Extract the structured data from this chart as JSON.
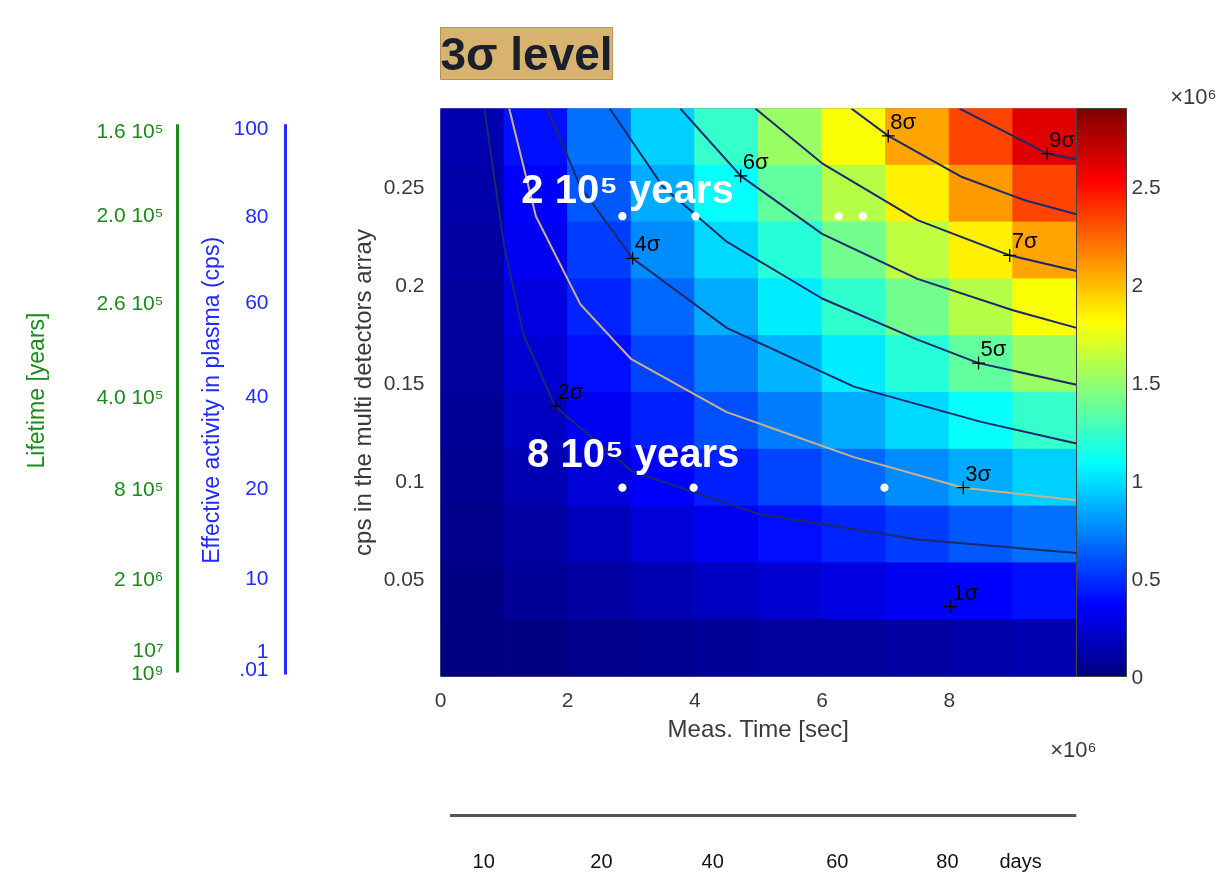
{
  "chart_data": {
    "type": "heatmap",
    "xlabel": "Meas. Time [sec]",
    "ylabel": "cps in the multi detectors array",
    "xlim": [
      0,
      10
    ],
    "xticks": [
      0,
      2,
      4,
      6,
      8
    ],
    "ylim": [
      0,
      0.29
    ],
    "yticks": [
      0.05,
      0.1,
      0.15,
      0.2,
      0.25
    ],
    "clim": [
      0,
      2.9
    ],
    "cticks": [
      0,
      0.5,
      1,
      1.5,
      2,
      2.5
    ],
    "x": [
      0.5,
      1.5,
      2.5,
      3.5,
      4.5,
      5.5,
      6.5,
      7.5,
      8.5,
      9.5
    ],
    "y": [
      0.2755,
      0.2465,
      0.2175,
      0.1885,
      0.1595,
      0.1305,
      0.1015,
      0.0725,
      0.0435,
      0.0145
    ],
    "cells": [
      [
        0.14,
        0.41,
        0.69,
        0.96,
        1.24,
        1.52,
        1.79,
        2.07,
        2.34,
        2.62
      ],
      [
        0.12,
        0.37,
        0.62,
        0.86,
        1.11,
        1.36,
        1.6,
        1.85,
        2.1,
        2.34
      ],
      [
        0.11,
        0.33,
        0.54,
        0.76,
        0.98,
        1.2,
        1.41,
        1.63,
        1.85,
        2.07
      ],
      [
        0.09,
        0.28,
        0.47,
        0.66,
        0.85,
        1.04,
        1.23,
        1.41,
        1.6,
        1.79
      ],
      [
        0.08,
        0.24,
        0.4,
        0.56,
        0.72,
        0.88,
        1.04,
        1.2,
        1.36,
        1.52
      ],
      [
        0.07,
        0.2,
        0.33,
        0.46,
        0.59,
        0.72,
        0.85,
        0.98,
        1.11,
        1.24
      ],
      [
        0.05,
        0.15,
        0.25,
        0.36,
        0.46,
        0.56,
        0.66,
        0.76,
        0.86,
        0.96
      ],
      [
        0.04,
        0.11,
        0.18,
        0.25,
        0.33,
        0.4,
        0.47,
        0.54,
        0.62,
        0.69
      ],
      [
        0.02,
        0.07,
        0.11,
        0.15,
        0.2,
        0.24,
        0.28,
        0.33,
        0.37,
        0.41
      ],
      [
        0.01,
        0.02,
        0.04,
        0.05,
        0.07,
        0.08,
        0.09,
        0.11,
        0.12,
        0.14
      ]
    ],
    "series": [
      {
        "type": "line",
        "color": "#1c2a6b",
        "x": [
          0.69,
          1.0,
          1.3,
          1.8,
          3,
          5,
          7.5,
          10
        ],
        "values": [
          0.29,
          0.22,
          0.175,
          0.138,
          0.105,
          0.083,
          0.07,
          0.063
        ]
      },
      {
        "type": "line",
        "color": "#1c2a6b",
        "x": [
          1.68,
          2.2,
          3.02,
          4.5,
          6.5,
          8.5,
          10
        ],
        "values": [
          0.29,
          0.25,
          0.2135,
          0.178,
          0.148,
          0.13,
          0.119
        ]
      },
      {
        "type": "line",
        "color": "#1c2a6b",
        "x": [
          2.66,
          3.5,
          4.5,
          6,
          7.5,
          8.46,
          10
        ],
        "values": [
          0.29,
          0.25,
          0.222,
          0.193,
          0.172,
          0.16,
          0.149
        ]
      },
      {
        "type": "line",
        "color": "#1c2a6b",
        "x": [
          3.77,
          4.72,
          6,
          7.5,
          9,
          10
        ],
        "values": [
          0.29,
          0.2556,
          0.226,
          0.203,
          0.187,
          0.178
        ]
      },
      {
        "type": "line",
        "color": "#1c2a6b",
        "x": [
          4.95,
          6,
          7.5,
          8.95,
          10
        ],
        "values": [
          0.29,
          0.262,
          0.233,
          0.215,
          0.207
        ]
      },
      {
        "type": "line",
        "color": "#1c2a6b",
        "x": [
          6.46,
          7.04,
          8.2,
          9.2,
          10
        ],
        "values": [
          0.29,
          0.276,
          0.255,
          0.243,
          0.236
        ]
      },
      {
        "type": "line",
        "color": "#1c2a6b",
        "x": [
          8.16,
          9,
          9.54,
          10
        ],
        "values": [
          0.29,
          0.276,
          0.267,
          0.264
        ]
      },
      {
        "type": "line",
        "color": "#c8b28a",
        "x": [
          1.08,
          1.5,
          2.2,
          3,
          4.5,
          6.5,
          8.22,
          10
        ],
        "values": [
          0.29,
          0.235,
          0.19,
          0.162,
          0.135,
          0.112,
          0.0964,
          0.09
        ]
      },
      {
        "type": "scatter",
        "marker": "cross",
        "color": "#000000",
        "name": "1σ",
        "x": [
          8.02
        ],
        "values": [
          0.0357
        ]
      },
      {
        "type": "scatter",
        "marker": "cross",
        "color": "#000000",
        "name": "2σ",
        "x": [
          1.81
        ],
        "values": [
          0.138
        ]
      },
      {
        "type": "scatter",
        "marker": "cross",
        "color": "#000000",
        "name": "3σ",
        "x": [
          8.22
        ],
        "values": [
          0.0964
        ]
      },
      {
        "type": "scatter",
        "marker": "cross",
        "color": "#000000",
        "name": "4σ",
        "x": [
          3.02
        ],
        "values": [
          0.2135
        ]
      },
      {
        "type": "scatter",
        "marker": "cross",
        "color": "#000000",
        "name": "5σ",
        "x": [
          8.46
        ],
        "values": [
          0.16
        ]
      },
      {
        "type": "scatter",
        "marker": "cross",
        "color": "#000000",
        "name": "6σ",
        "x": [
          4.72
        ],
        "values": [
          0.2556
        ]
      },
      {
        "type": "scatter",
        "marker": "cross",
        "color": "#000000",
        "name": "7σ",
        "x": [
          8.95
        ],
        "values": [
          0.215
        ]
      },
      {
        "type": "scatter",
        "marker": "cross",
        "color": "#000000",
        "name": "8σ",
        "x": [
          7.04
        ],
        "values": [
          0.276
        ]
      },
      {
        "type": "scatter",
        "marker": "cross",
        "color": "#000000",
        "name": "9σ",
        "x": [
          9.54
        ],
        "values": [
          0.267
        ]
      },
      {
        "type": "scatter",
        "marker": "circle",
        "color": "#ffffff",
        "x": [
          2.86,
          4.01,
          6.26,
          6.64,
          2.86,
          3.98,
          6.98
        ],
        "values": [
          0.235,
          0.235,
          0.235,
          0.235,
          0.0964,
          0.0964,
          0.0964
        ]
      }
    ],
    "annotations": [
      "×10⁶",
      "×10⁶",
      "3σ level",
      "2 10⁵ years",
      "8 10⁵ years",
      "Lifetime [years]",
      "Effective activity in plasma (cps)",
      "100",
      "80",
      "60",
      "40",
      "20",
      "10",
      "1",
      ".01",
      "1.6 10⁵",
      "2.0 10⁵",
      "2.6 10⁵",
      "4.0 10⁵",
      "8 10⁵",
      "2 10⁶",
      "10⁷",
      "10⁹",
      "10",
      "20",
      "40",
      "60",
      "80",
      "days"
    ]
  }
}
